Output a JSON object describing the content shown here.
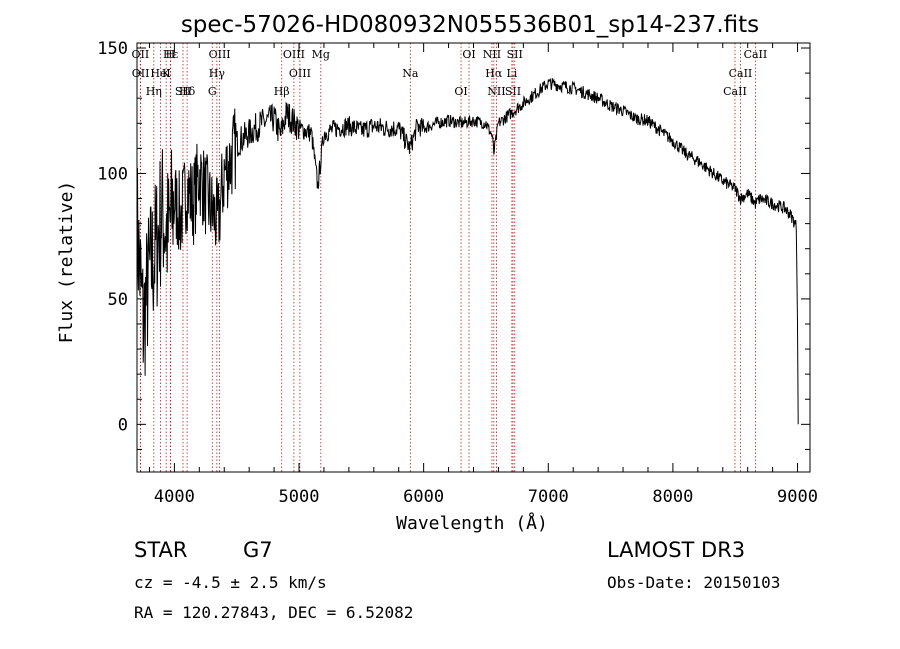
{
  "chart_data": {
    "type": "line",
    "title": "spec-57026-HD080932N055536B01_sp14-237.fits",
    "xlabel": "Wavelength (Å)",
    "ylabel": "Flux (relative)",
    "xlim": [
      3700,
      9100
    ],
    "ylim": [
      -19,
      152
    ],
    "xticks": [
      4000,
      5000,
      6000,
      7000,
      8000,
      9000
    ],
    "yticks": [
      0,
      50,
      100,
      150
    ],
    "grid": false,
    "series": [
      {
        "name": "flux",
        "x": [
          3700,
          3750,
          3800,
          3850,
          3900,
          3950,
          4000,
          4050,
          4100,
          4150,
          4200,
          4250,
          4300,
          4350,
          4400,
          4450,
          4500,
          4600,
          4700,
          4800,
          4850,
          4900,
          5000,
          5100,
          5150,
          5200,
          5300,
          5400,
          5500,
          5600,
          5700,
          5800,
          5890,
          5950,
          6000,
          6100,
          6200,
          6300,
          6400,
          6500,
          6550,
          6563,
          6600,
          6700,
          6800,
          6900,
          7000,
          7100,
          7200,
          7300,
          7400,
          7500,
          7600,
          7700,
          7800,
          7900,
          8000,
          8100,
          8200,
          8300,
          8400,
          8500,
          8542,
          8600,
          8662,
          8700,
          8800,
          8900,
          8950,
          8990,
          9000,
          9005
        ],
        "y": [
          80,
          40,
          60,
          70,
          85,
          75,
          90,
          82,
          95,
          88,
          100,
          92,
          85,
          80,
          100,
          105,
          112,
          116,
          120,
          122,
          115,
          124,
          118,
          116,
          95,
          116,
          118,
          119,
          117,
          119,
          118,
          118,
          110,
          119,
          118,
          120,
          121,
          120,
          121,
          120,
          115,
          108,
          120,
          124,
          128,
          132,
          136,
          135,
          134,
          132,
          130,
          127,
          125,
          122,
          121,
          117,
          113,
          108,
          105,
          101,
          97,
          94,
          90,
          92,
          88,
          90,
          88,
          86,
          83,
          79,
          40,
          0
        ]
      }
    ],
    "lines": [
      {
        "name": "Hε",
        "wl": 3970
      },
      {
        "name": "K",
        "wl": 3934
      },
      {
        "name": "Hδ",
        "wl": 4102
      },
      {
        "name": "OII",
        "wl": 3727
      },
      {
        "name": "HeI",
        "wl": 3889
      },
      {
        "name": "SII",
        "wl": 4069
      },
      {
        "name": "OIII",
        "wl": 4363
      },
      {
        "name": "Hγ",
        "wl": 4341
      },
      {
        "name": "G",
        "wl": 4304
      },
      {
        "name": "OIII",
        "wl": 4959
      },
      {
        "name": "OIII",
        "wl": 5007
      },
      {
        "name": "Hβ",
        "wl": 4861
      },
      {
        "name": "Mg",
        "wl": 5175
      },
      {
        "name": "Na",
        "wl": 5893
      },
      {
        "name": "OI",
        "wl": 6300
      },
      {
        "name": "OI",
        "wl": 6364
      },
      {
        "name": "Hα",
        "wl": 6563
      },
      {
        "name": "SII",
        "wl": 6717
      },
      {
        "name": "NII",
        "wl": 6548
      },
      {
        "name": "Li",
        "wl": 6708
      },
      {
        "name": "NII",
        "wl": 6584
      },
      {
        "name": "SII",
        "wl": 6731
      },
      {
        "name": "CaII",
        "wl": 8542
      },
      {
        "name": "CaII",
        "wl": 8498
      },
      {
        "name": "CaII",
        "wl": 8662
      },
      {
        "name": "OII",
        "wl": 3729
      },
      {
        "name": "Hη",
        "wl": 3835
      },
      {
        "name": "H",
        "wl": 3968
      }
    ]
  },
  "info": {
    "object_class": "STAR",
    "subclass": "G7",
    "survey": "LAMOST DR3",
    "cz": "cz = -4.5 ± 2.5 km/s",
    "obs_date": "Obs-Date: 20150103",
    "coords": "RA = 120.27843, DEC =    6.52082"
  },
  "colors": {
    "spectrum": "#000000",
    "line_marker": "#b22222",
    "axis": "#000000"
  }
}
